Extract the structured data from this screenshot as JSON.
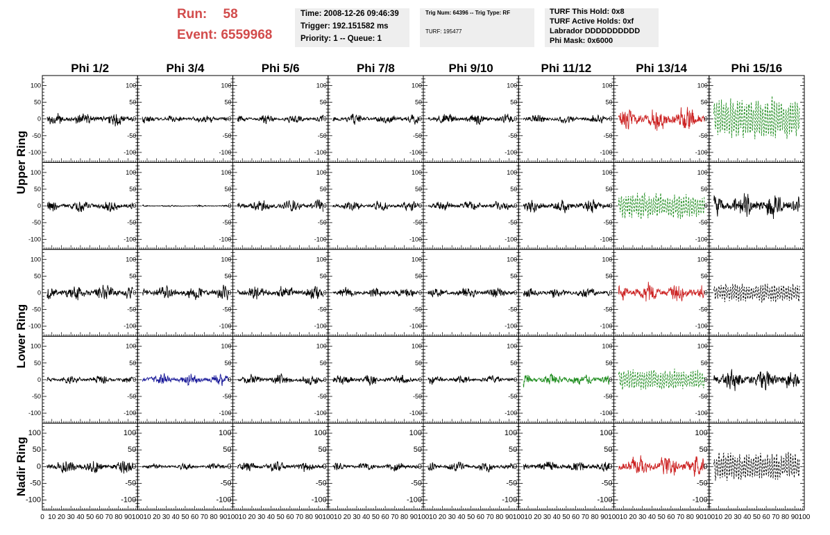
{
  "header": {
    "run_label": "Run:",
    "run_value": "58",
    "event_label": "Event:",
    "event_value": "6559968",
    "box1": [
      "Time: 2008-12-26 09:46:39",
      "Trigger: 192.151582 ms",
      "Priority: 1 -- Queue: 1"
    ],
    "box2": [
      "Trig Num: 64396 -- Trig Type: RF",
      "TURF: 195477"
    ],
    "box3": [
      "TURF This Hold: 0x8",
      "TURF Active Holds: 0xf",
      "Labrador DDDDDDDDDD",
      "Phi Mask: 0x6000"
    ]
  },
  "colors": {
    "red": "#cc2222",
    "green": "#1a8a1a",
    "blue": "#1a1a99",
    "black": "#000000"
  },
  "chart_data": {
    "type": "line",
    "columns": [
      "Phi 1/2",
      "Phi 3/4",
      "Phi 5/6",
      "Phi 7/8",
      "Phi 9/10",
      "Phi 11/12",
      "Phi 13/14",
      "Phi 15/16"
    ],
    "ring_labels": [
      "Upper Ring",
      "Lower Ring",
      "Nadir Ring"
    ],
    "x_range": [
      0,
      100
    ],
    "x_ticks": [
      0,
      10,
      20,
      30,
      40,
      50,
      60,
      70,
      80,
      90,
      100
    ],
    "y_range": [
      -130,
      130
    ],
    "y_ticks": [
      -100,
      -50,
      0,
      50,
      100
    ],
    "waveform_color": [
      [
        "black",
        "black",
        "black",
        "black",
        "black",
        "black",
        "red",
        "green"
      ],
      [
        "black",
        "black",
        "black",
        "black",
        "black",
        "black",
        "green",
        "black"
      ],
      [
        "black",
        "black",
        "black",
        "black",
        "black",
        "black",
        "red",
        "black"
      ],
      [
        "black",
        "blue",
        "black",
        "black",
        "black",
        "green",
        "green",
        "black"
      ],
      [
        "black",
        "black",
        "black",
        "black",
        "black",
        "black",
        "red",
        "black"
      ]
    ],
    "waveform_dashed": [
      [
        false,
        false,
        false,
        false,
        false,
        false,
        false,
        true
      ],
      [
        false,
        false,
        false,
        false,
        false,
        false,
        true,
        false
      ],
      [
        false,
        false,
        false,
        false,
        false,
        false,
        false,
        true
      ],
      [
        false,
        false,
        false,
        false,
        false,
        false,
        true,
        false
      ],
      [
        false,
        false,
        false,
        false,
        false,
        false,
        false,
        true
      ]
    ],
    "waveform_amplitude": [
      [
        25,
        15,
        15,
        18,
        18,
        15,
        45,
        65
      ],
      [
        22,
        3,
        22,
        18,
        18,
        25,
        40,
        45
      ],
      [
        30,
        25,
        25,
        18,
        18,
        18,
        35,
        30
      ],
      [
        15,
        22,
        18,
        18,
        15,
        22,
        32,
        40
      ],
      [
        25,
        12,
        18,
        15,
        18,
        20,
        40,
        45
      ]
    ]
  }
}
